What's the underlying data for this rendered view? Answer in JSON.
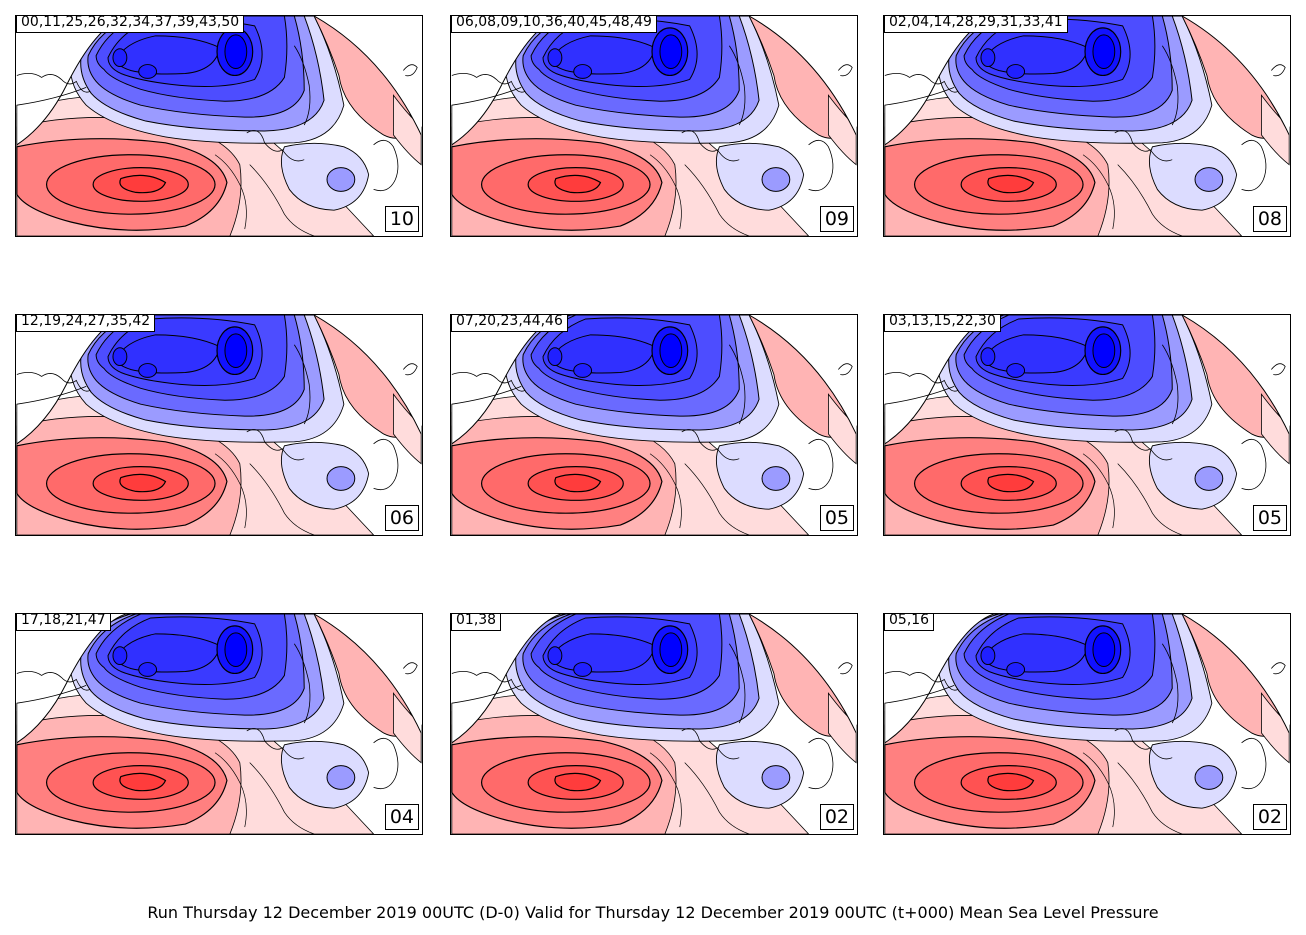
{
  "title": "Run Thursday 12 December 2019 00UTC (D-0) Valid for Thursday 12 December 2019 00UTC (t+000) Mean Sea Level Pressure",
  "colors": {
    "low_deep": "#0000ff",
    "low_mid": "#4d4dff",
    "low_light": "#9b9bff",
    "low_pale": "#dcdcff",
    "high_pale": "#ffdcdc",
    "high_light": "#ffb4b4",
    "high_mid": "#ff8080",
    "high_deep": "#ff4a4a",
    "contour": "#000000"
  },
  "panels": [
    {
      "members": "00,11,25,26,32,34,37,39,43,50",
      "count": "10"
    },
    {
      "members": "06,08,09,10,36,40,45,48,49",
      "count": "09"
    },
    {
      "members": "02,04,14,28,29,31,33,41",
      "count": "08"
    },
    {
      "members": "12,19,24,27,35,42",
      "count": "06"
    },
    {
      "members": "07,20,23,44,46",
      "count": "05"
    },
    {
      "members": "03,13,15,22,30",
      "count": "05"
    },
    {
      "members": "17,18,21,47",
      "count": "04"
    },
    {
      "members": "01,38",
      "count": "02"
    },
    {
      "members": "05,16",
      "count": "02"
    }
  ]
}
